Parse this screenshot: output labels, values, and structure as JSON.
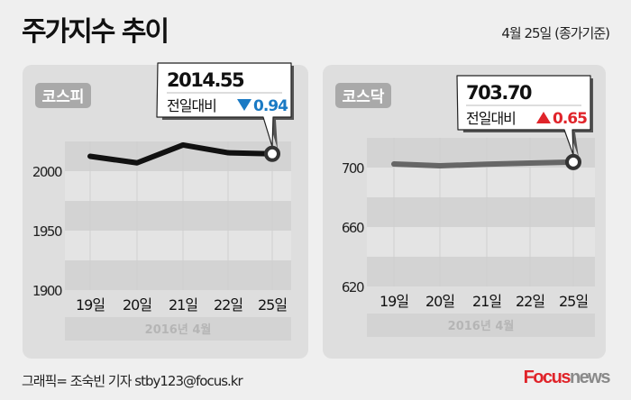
{
  "header": {
    "title": "주가지수 추이",
    "date_note": "4월 25일 (종가기준)"
  },
  "chart_data": [
    {
      "type": "line",
      "title": "코스피",
      "categories": [
        "19일",
        "20일",
        "21일",
        "22일",
        "25일"
      ],
      "values": [
        2012.5,
        2007,
        2022,
        2015.5,
        2014.55
      ],
      "yticks": [
        1900,
        1950,
        2000
      ],
      "ylim": [
        1900,
        2025
      ],
      "xlabel": "2016년   4월",
      "line_color": "#111111",
      "callout": {
        "value": "2014.55",
        "label": "전일대비",
        "change": "0.94",
        "direction": "down",
        "change_color": "#1a7ac4"
      }
    },
    {
      "type": "line",
      "title": "코스닥",
      "categories": [
        "19일",
        "20일",
        "21일",
        "22일",
        "25일"
      ],
      "values": [
        702.4,
        701.2,
        702.3,
        703.0,
        703.7
      ],
      "yticks": [
        620,
        660,
        700
      ],
      "ylim": [
        620,
        720
      ],
      "xlabel": "2016년   4월",
      "line_color": "#666666",
      "callout": {
        "value": "703.70",
        "label": "전일대비",
        "change": "0.65",
        "direction": "up",
        "change_color": "#e0242a"
      }
    }
  ],
  "footer": {
    "credit": "그래픽= 조숙빈 기자 stby123@focus.kr",
    "logo_focus": "Focus",
    "logo_news": "news"
  }
}
